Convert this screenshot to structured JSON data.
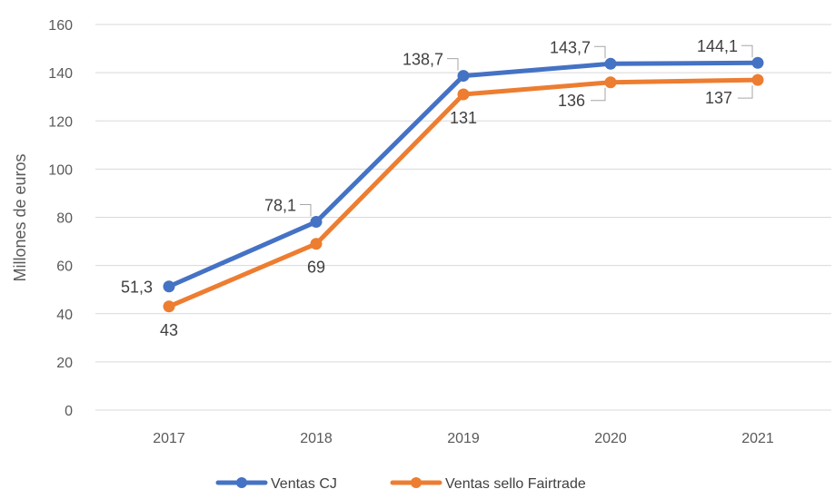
{
  "chart_data": {
    "type": "line",
    "categories": [
      "2017",
      "2018",
      "2019",
      "2020",
      "2021"
    ],
    "series": [
      {
        "name": "Ventas CJ",
        "values": [
          51.3,
          78.1,
          138.7,
          143.7,
          144.1
        ],
        "labels": [
          "51,3",
          "78,1",
          "138,7",
          "143,7",
          "144,1"
        ],
        "color": "#4472C4"
      },
      {
        "name": "Ventas sello Fairtrade",
        "values": [
          43,
          69,
          131,
          136,
          137
        ],
        "labels": [
          "43",
          "69",
          "131",
          "136",
          "137"
        ],
        "color": "#ED7D31"
      }
    ],
    "ylabel": "Millones de euros",
    "ylim": [
      0,
      160
    ],
    "yticks": [
      0,
      20,
      40,
      60,
      80,
      100,
      120,
      140,
      160
    ],
    "grid": true,
    "legend": "bottom"
  }
}
